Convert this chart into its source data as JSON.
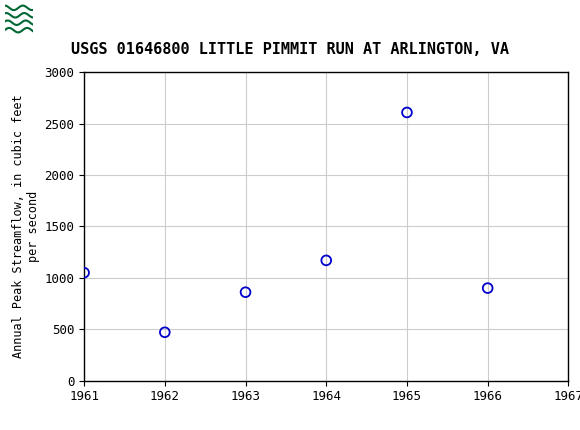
{
  "title": "USGS 01646800 LITTLE PIMMIT RUN AT ARLINGTON, VA",
  "years": [
    1961,
    1962,
    1963,
    1964,
    1965,
    1966
  ],
  "values": [
    1050,
    470,
    860,
    1170,
    2610,
    900
  ],
  "ylabel": "Annual Peak Streamflow, in cubic feet\nper second",
  "xlim": [
    1961,
    1967
  ],
  "ylim": [
    0,
    3000
  ],
  "xticks": [
    1961,
    1962,
    1963,
    1964,
    1965,
    1966,
    1967
  ],
  "yticks": [
    0,
    500,
    1000,
    1500,
    2000,
    2500,
    3000
  ],
  "marker_color": "#0000cc",
  "marker_size": 7,
  "marker_lw": 1.3,
  "grid_color": "#cccccc",
  "background_color": "#ffffff",
  "header_color": "#006633",
  "title_fontsize": 11,
  "axis_label_fontsize": 8.5,
  "tick_fontsize": 9
}
